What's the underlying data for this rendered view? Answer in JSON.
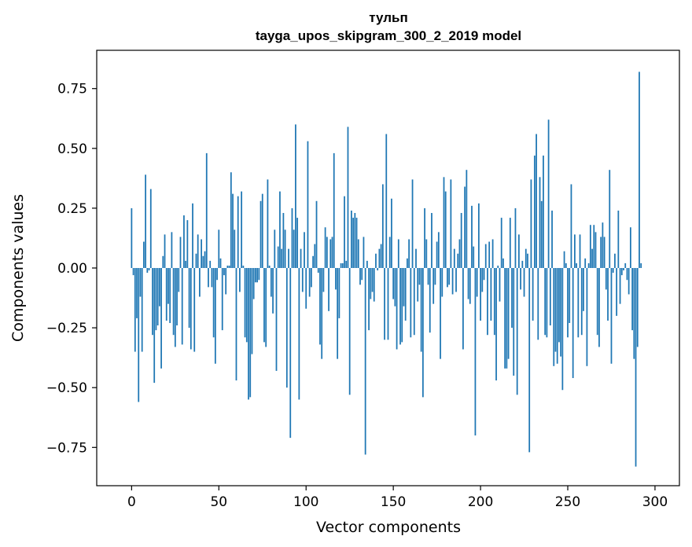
{
  "chart_data": {
    "type": "bar",
    "title": "тульп",
    "subtitle": "tayga_upos_skipgram_300_2_2019 model",
    "xlabel": "Vector components",
    "ylabel": "Components values",
    "xlim": [
      -20,
      314
    ],
    "ylim": [
      -0.91,
      0.91
    ],
    "xticks": [
      0,
      50,
      100,
      150,
      200,
      250,
      300
    ],
    "yticks": [
      -0.75,
      -0.5,
      -0.25,
      0.0,
      0.25,
      0.5,
      0.75
    ],
    "ytick_labels": [
      "−0.75",
      "−0.50",
      "−0.25",
      "0.00",
      "0.25",
      "0.50",
      "0.75"
    ],
    "xtick_labels": [
      "0",
      "50",
      "100",
      "150",
      "200",
      "250",
      "300"
    ],
    "bar_color": "#1f77b4",
    "grid": false,
    "legend": "none",
    "values": [
      0.25,
      -0.03,
      -0.35,
      -0.21,
      -0.56,
      -0.12,
      -0.35,
      0.11,
      0.39,
      -0.02,
      -0.01,
      0.33,
      -0.28,
      -0.48,
      -0.26,
      -0.24,
      -0.16,
      -0.42,
      0.05,
      0.14,
      -0.22,
      -0.15,
      -0.23,
      0.15,
      -0.28,
      -0.33,
      -0.24,
      -0.1,
      0.13,
      -0.32,
      0.22,
      0.03,
      0.2,
      -0.25,
      -0.34,
      0.27,
      -0.35,
      0.06,
      0.14,
      -0.12,
      0.12,
      0.05,
      0.07,
      0.48,
      -0.08,
      0.03,
      -0.08,
      -0.29,
      -0.4,
      -0.05,
      0.16,
      0.04,
      -0.26,
      -0.03,
      -0.11,
      0.01,
      0.01,
      0.4,
      0.31,
      0.16,
      -0.47,
      0.3,
      -0.1,
      0.32,
      0.01,
      -0.29,
      -0.31,
      -0.55,
      -0.54,
      -0.36,
      -0.13,
      -0.06,
      -0.06,
      -0.05,
      0.28,
      0.31,
      -0.31,
      -0.33,
      0.37,
      0.01,
      -0.12,
      -0.19,
      0.16,
      -0.43,
      0.09,
      0.32,
      0.08,
      0.23,
      0.16,
      -0.5,
      0.08,
      -0.71,
      0.25,
      0.16,
      0.6,
      0.21,
      -0.55,
      0.08,
      -0.1,
      0.15,
      -0.17,
      0.53,
      -0.12,
      -0.08,
      0.05,
      0.1,
      0.28,
      -0.02,
      -0.32,
      -0.38,
      -0.1,
      0.17,
      0.13,
      -0.18,
      0.12,
      0.13,
      0.48,
      -0.09,
      -0.38,
      -0.21,
      0.02,
      0.02,
      0.3,
      0.03,
      0.59,
      -0.53,
      0.24,
      0.21,
      0.23,
      0.21,
      0.12,
      -0.07,
      -0.05,
      0.13,
      -0.78,
      0.03,
      -0.26,
      -0.13,
      -0.1,
      -0.14,
      0.06,
      -0.01,
      0.08,
      0.1,
      0.35,
      -0.3,
      0.56,
      -0.3,
      0.13,
      0.29,
      -0.13,
      -0.16,
      -0.34,
      0.12,
      -0.32,
      -0.31,
      -0.16,
      -0.22,
      0.04,
      0.12,
      -0.29,
      0.37,
      -0.28,
      0.08,
      -0.14,
      -0.07,
      -0.35,
      -0.54,
      0.25,
      0.12,
      -0.07,
      -0.27,
      0.23,
      -0.15,
      -0.07,
      0.11,
      0.15,
      -0.38,
      -0.12,
      0.38,
      0.32,
      -0.08,
      -0.07,
      0.37,
      -0.11,
      0.08,
      -0.1,
      0.06,
      0.12,
      0.23,
      -0.34,
      0.34,
      0.41,
      -0.13,
      -0.15,
      0.26,
      0.09,
      -0.7,
      -0.12,
      0.27,
      -0.22,
      -0.1,
      -0.05,
      0.1,
      -0.28,
      0.11,
      -0.22,
      0.12,
      -0.28,
      -0.47,
      0.01,
      -0.14,
      0.21,
      0.04,
      -0.42,
      -0.42,
      -0.38,
      0.21,
      -0.25,
      -0.45,
      0.25,
      -0.53,
      0.14,
      -0.09,
      0.03,
      -0.12,
      0.08,
      0.06,
      -0.77,
      0.37,
      -0.22,
      0.47,
      0.56,
      -0.3,
      0.38,
      0.28,
      0.47,
      -0.28,
      -0.29,
      0.62,
      -0.24,
      0.24,
      -0.41,
      -0.35,
      -0.4,
      -0.31,
      -0.37,
      -0.51,
      0.07,
      0.02,
      -0.29,
      -0.23,
      0.35,
      -0.46,
      0.14,
      0.02,
      -0.29,
      0.14,
      -0.28,
      -0.18,
      0.04,
      -0.41,
      0.02,
      0.18,
      0.08,
      0.18,
      0.15,
      -0.28,
      -0.33,
      0.13,
      0.19,
      0.13,
      -0.09,
      -0.22,
      0.41,
      -0.4,
      -0.02,
      0.06,
      -0.2,
      0.24,
      -0.15,
      -0.03,
      -0.01,
      0.02,
      -0.05,
      -0.11,
      0.17,
      -0.26,
      -0.38,
      -0.83,
      -0.33,
      0.82,
      0.02
    ]
  }
}
